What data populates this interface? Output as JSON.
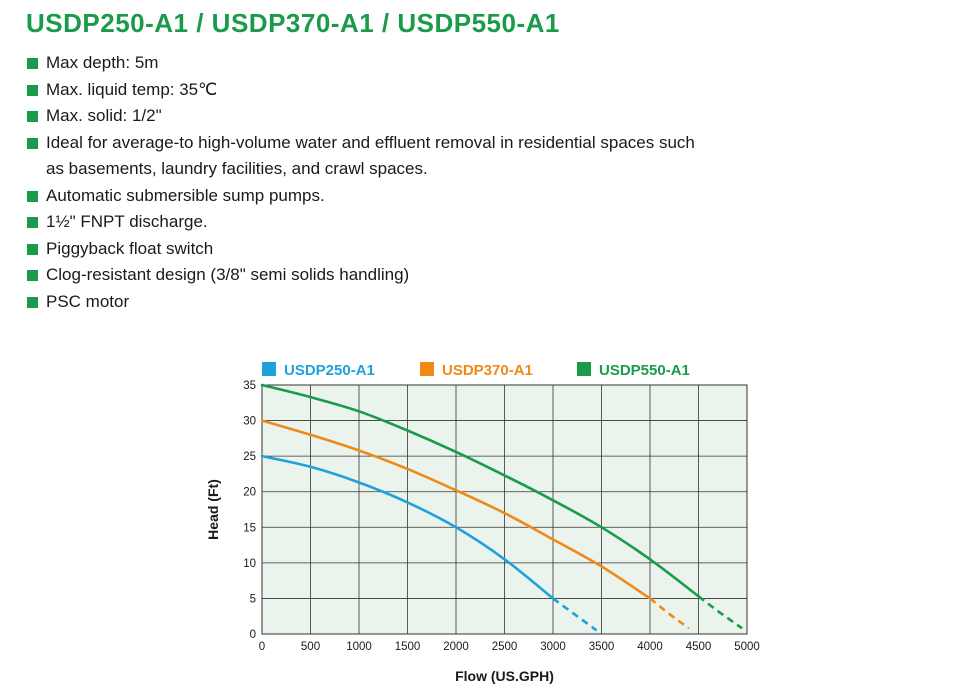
{
  "title": "USDP250-A1 / USDP370-A1 / USDP550-A1",
  "colors": {
    "title": "#1a9a4b",
    "bullet": "#1a9a4b",
    "plot_background": "#ebf4ec",
    "grid": "#333333"
  },
  "features": [
    {
      "lines": [
        "Max depth: 5m"
      ]
    },
    {
      "lines": [
        "Max. liquid  temp: 35℃"
      ]
    },
    {
      "lines": [
        "Max. solid: 1/2\""
      ]
    },
    {
      "lines": [
        "Ideal for average-to high-volume water and effluent removal in residential spaces such",
        "as basements, laundry facilities, and crawl spaces."
      ]
    },
    {
      "lines": [
        " Automatic submersible sump pumps."
      ]
    },
    {
      "lines": [
        "1½\" FNPT discharge."
      ]
    },
    {
      "lines": [
        "Piggyback float switch"
      ]
    },
    {
      "lines": [
        "Clog-resistant design (3/8\" semi solids handling)"
      ]
    },
    {
      "lines": [
        "PSC motor"
      ]
    }
  ],
  "chart_data": {
    "type": "line",
    "title": "",
    "xlabel": "Flow (US.GPH)",
    "ylabel": "Head (Ft)",
    "xlim": [
      0,
      5000
    ],
    "ylim": [
      0,
      35
    ],
    "xticks": [
      0,
      500,
      1000,
      1500,
      2000,
      2500,
      3000,
      3500,
      4000,
      4500,
      5000
    ],
    "yticks": [
      0,
      5,
      10,
      15,
      20,
      25,
      30,
      35
    ],
    "grid": true,
    "legend_position": "top",
    "series": [
      {
        "name": "USDP250-A1",
        "color": "#1ea1dc",
        "points": [
          [
            0,
            25
          ],
          [
            500,
            23.5
          ],
          [
            1000,
            21.3
          ],
          [
            1500,
            18.5
          ],
          [
            2000,
            15
          ],
          [
            2500,
            10.5
          ],
          [
            3000,
            5
          ]
        ],
        "dashed_points": [
          [
            3000,
            5
          ],
          [
            3200,
            3
          ],
          [
            3450,
            0.5
          ]
        ]
      },
      {
        "name": "USDP370-A1",
        "color": "#ef8a17",
        "points": [
          [
            0,
            30
          ],
          [
            500,
            28
          ],
          [
            1000,
            25.8
          ],
          [
            1500,
            23.2
          ],
          [
            2000,
            20.2
          ],
          [
            2500,
            17
          ],
          [
            3000,
            13.3
          ],
          [
            3500,
            9.5
          ],
          [
            4000,
            5
          ]
        ],
        "dashed_points": [
          [
            4000,
            5
          ],
          [
            4200,
            2.8
          ],
          [
            4400,
            0.8
          ]
        ]
      },
      {
        "name": "USDP550-A1",
        "color": "#1a9a4b",
        "points": [
          [
            0,
            35
          ],
          [
            500,
            33.3
          ],
          [
            1000,
            31.3
          ],
          [
            1500,
            28.6
          ],
          [
            2000,
            25.6
          ],
          [
            2500,
            22.3
          ],
          [
            3000,
            18.8
          ],
          [
            3500,
            15
          ],
          [
            4000,
            10.5
          ],
          [
            4500,
            5.3
          ]
        ],
        "dashed_points": [
          [
            4500,
            5.3
          ],
          [
            4700,
            3.2
          ],
          [
            4950,
            0.8
          ]
        ]
      }
    ]
  }
}
